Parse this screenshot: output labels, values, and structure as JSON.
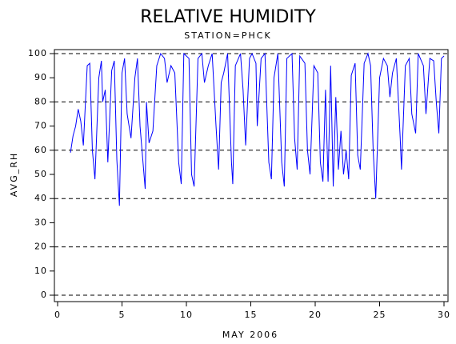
{
  "chart_data": {
    "type": "line",
    "title": "RELATIVE HUMIDITY",
    "subtitle": "STATION=PHCK",
    "x_label": "MAY 2006",
    "y_label": "AVG_RH",
    "xlim": [
      0,
      30
    ],
    "xticks": [
      0,
      5,
      10,
      15,
      20,
      25,
      30
    ],
    "ylim": [
      0,
      100
    ],
    "yticks": [
      0,
      10,
      20,
      30,
      40,
      50,
      60,
      70,
      80,
      90,
      100
    ],
    "ygrid": [
      0,
      20,
      40,
      60,
      80,
      100
    ],
    "grid": true,
    "series": [
      {
        "name": "AVG_RH",
        "color": "#0000ff",
        "x": [
          1.0,
          1.2,
          1.4,
          1.6,
          1.8,
          2.0,
          2.3,
          2.5,
          2.7,
          2.9,
          3.2,
          3.4,
          3.5,
          3.7,
          3.9,
          4.2,
          4.4,
          4.6,
          4.8,
          5.0,
          5.2,
          5.4,
          5.7,
          6.0,
          6.2,
          6.4,
          6.8,
          6.9,
          7.1,
          7.4,
          7.7,
          8.0,
          8.3,
          8.5,
          8.8,
          9.1,
          9.4,
          9.6,
          9.8,
          10.2,
          10.4,
          10.6,
          10.9,
          11.2,
          11.4,
          11.7,
          12.0,
          12.3,
          12.5,
          12.7,
          12.9,
          13.2,
          13.5,
          13.6,
          13.8,
          14.2,
          14.4,
          14.6,
          14.9,
          15.1,
          15.4,
          15.5,
          15.8,
          16.1,
          16.4,
          16.6,
          16.8,
          17.1,
          17.4,
          17.6,
          17.8,
          18.2,
          18.4,
          18.6,
          18.8,
          19.2,
          19.4,
          19.6,
          19.9,
          20.2,
          20.4,
          20.6,
          20.8,
          21.0,
          21.2,
          21.4,
          21.6,
          21.8,
          22.0,
          22.2,
          22.4,
          22.6,
          22.8,
          23.1,
          23.3,
          23.5,
          23.8,
          24.1,
          24.3,
          24.5,
          24.7,
          25.0,
          25.3,
          25.6,
          25.8,
          26.0,
          26.3,
          26.6,
          26.7,
          27.0,
          27.3,
          27.5,
          27.8,
          28.0,
          28.4,
          28.6,
          28.9,
          29.2,
          29.4,
          29.6,
          29.8,
          30.0
        ],
        "values": [
          59,
          66,
          70,
          77,
          72,
          62,
          95,
          96,
          60,
          48,
          90,
          97,
          80,
          85,
          55,
          93,
          97,
          56,
          37,
          92,
          98,
          75,
          65,
          90,
          98,
          70,
          44,
          80,
          63,
          68,
          95,
          100,
          98,
          88,
          95,
          92,
          55,
          46,
          100,
          98,
          50,
          45,
          98,
          100,
          88,
          95,
          100,
          70,
          52,
          88,
          92,
          100,
          55,
          46,
          95,
          100,
          85,
          62,
          98,
          100,
          96,
          70,
          98,
          100,
          55,
          48,
          90,
          100,
          55,
          45,
          98,
          100,
          65,
          52,
          99,
          96,
          60,
          50,
          95,
          92,
          55,
          47,
          85,
          47,
          95,
          45,
          82,
          52,
          68,
          50,
          60,
          48,
          91,
          96,
          58,
          52,
          96,
          100,
          95,
          60,
          40,
          90,
          98,
          95,
          82,
          92,
          98,
          65,
          52,
          95,
          98,
          75,
          67,
          100,
          95,
          75,
          98,
          97,
          80,
          67,
          98,
          99
        ]
      }
    ]
  }
}
